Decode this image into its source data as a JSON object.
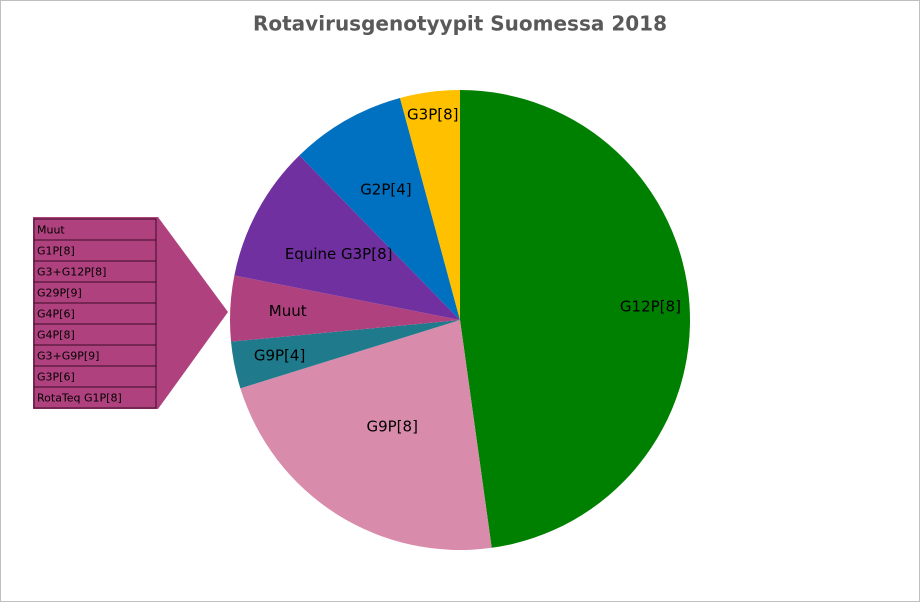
{
  "chart_data": {
    "type": "pie",
    "title": "Rotavirusgenotyypit Suomessa 2018",
    "categories": [
      "G12P[8]",
      "G9P[8]",
      "G9P[4]",
      "Muut",
      "Equine G3P[8]",
      "G2P[4]",
      "G3P[8]"
    ],
    "values": [
      47.8,
      22.4,
      3.3,
      4.6,
      9.6,
      8.1,
      4.2
    ],
    "colors": [
      "#008000",
      "#d98bab",
      "#1f7a8c",
      "#b0417f",
      "#7030a0",
      "#0070c0",
      "#ffc000"
    ],
    "muut_breakdown": [
      "Muut",
      "G1P[8]",
      "G3+G12P[8]",
      "G29P[9]",
      "G4P[6]",
      "G4P[8]",
      "G3+G9P[9]",
      "G3P[6]",
      "RotaTeq G1P[8]"
    ]
  }
}
